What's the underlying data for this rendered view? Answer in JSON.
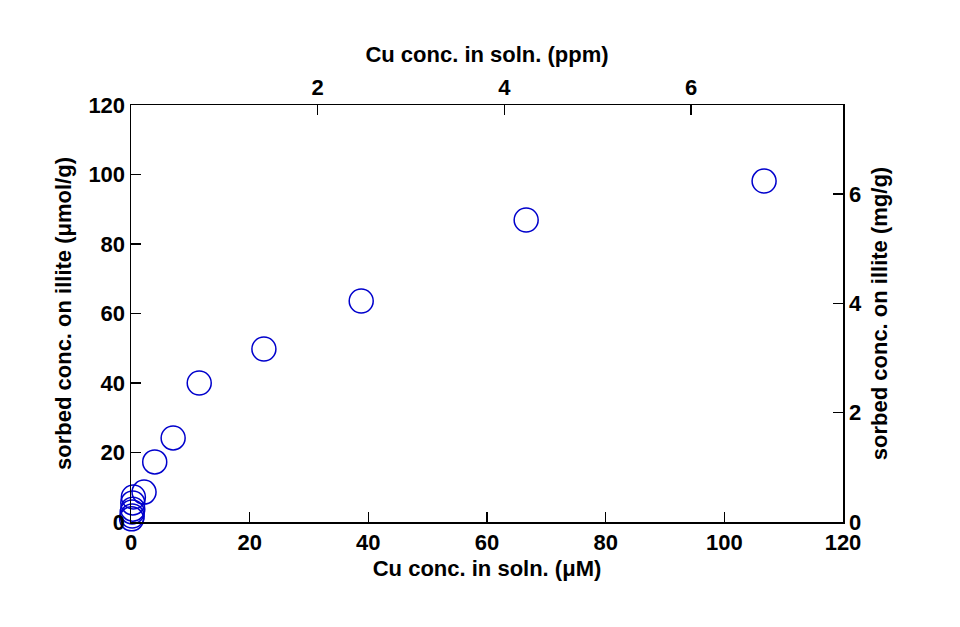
{
  "chart_data": {
    "type": "scatter",
    "xlabel": "Cu conc. in soln. (μM)",
    "ylabel": "sorbed conc. on illite (μmol/g)",
    "x2label": "Cu conc. in soln. (ppm)",
    "y2label": "sorbed conc. on illite (mg/g)",
    "x": [
      0.1,
      0.2,
      0.2,
      0.3,
      0.3,
      0.4,
      2.2,
      4.0,
      7.1,
      11.5,
      22.4,
      38.8,
      66.6,
      106.7
    ],
    "values": [
      0.9,
      1.7,
      2.9,
      3.7,
      5.5,
      7.2,
      8.6,
      17.3,
      24.2,
      40.0,
      49.8,
      63.6,
      86.9,
      98.1
    ],
    "color": "#0000cc",
    "marker": "circle-open",
    "xlim": [
      0,
      120
    ],
    "xticks": [
      0,
      20,
      40,
      60,
      80,
      100,
      120
    ],
    "ylim": [
      0,
      120
    ],
    "yticks": [
      0,
      20,
      40,
      60,
      80,
      100,
      120
    ],
    "x2lim": [
      0,
      7.626
    ],
    "x2ticks": [
      2,
      4,
      6
    ],
    "y2lim": [
      0,
      7.626
    ],
    "y2ticks": [
      0,
      2,
      4,
      6
    ],
    "grid": false
  }
}
